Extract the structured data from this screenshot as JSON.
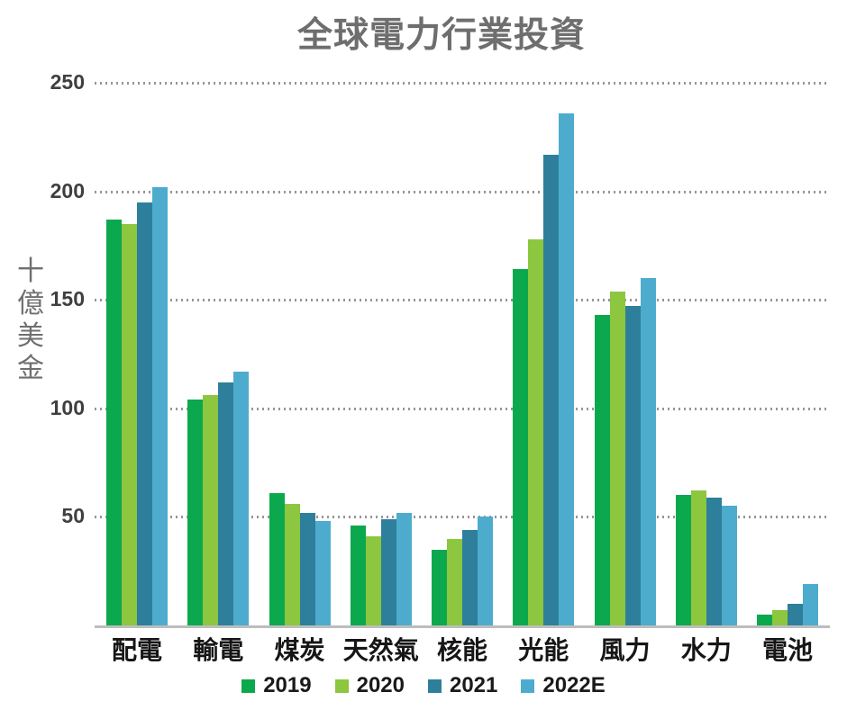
{
  "chart_data": {
    "type": "bar",
    "title": "全球電力行業投資",
    "ylabel": "十億美金",
    "categories": [
      "配電",
      "輸電",
      "煤炭",
      "天然氣",
      "核能",
      "光能",
      "風力",
      "水力",
      "電池"
    ],
    "series": [
      {
        "name": "2019",
        "color": "#0ca84e",
        "values": [
          187,
          104,
          61,
          46,
          35,
          164,
          143,
          60,
          5
        ]
      },
      {
        "name": "2020",
        "color": "#8dc63f",
        "values": [
          185,
          106,
          56,
          41,
          40,
          178,
          154,
          62,
          7
        ]
      },
      {
        "name": "2021",
        "color": "#2e7f9b",
        "values": [
          195,
          112,
          52,
          49,
          44,
          217,
          147,
          59,
          10
        ]
      },
      {
        "name": "2022E",
        "color": "#4daccd",
        "values": [
          202,
          117,
          48,
          52,
          50,
          236,
          160,
          55,
          19
        ]
      }
    ],
    "ylim": [
      0,
      250
    ],
    "yticks": [
      50,
      100,
      150,
      200,
      250
    ],
    "grid": "horizontal-dotted",
    "legend_position": "bottom"
  },
  "styles": {
    "title_color": "#6e6e6e",
    "axis_label_color": "#6f6f6f",
    "tick_label_color": "#3f3f3f",
    "category_label_color": "#161616",
    "gridline_color": "#969696",
    "baseline_color": "#bdbdbd",
    "background": "#ffffff"
  }
}
